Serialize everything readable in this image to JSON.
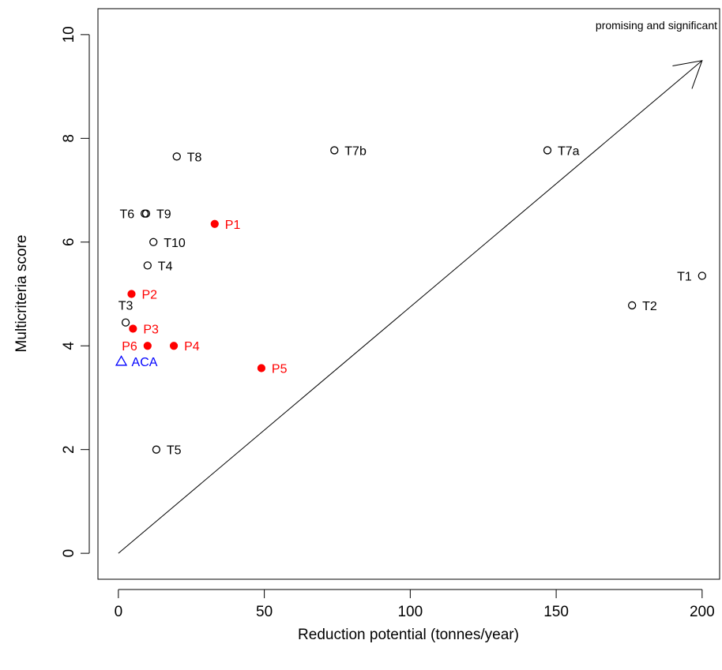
{
  "chart_data": {
    "type": "scatter",
    "xlabel": "Reduction potential (tonnes/year)",
    "ylabel": "Multicriteria score",
    "xlim": [
      -7,
      206
    ],
    "ylim": [
      -0.5,
      10.5
    ],
    "x_ticks": [
      0,
      50,
      100,
      150,
      200
    ],
    "y_ticks": [
      0,
      2,
      4,
      6,
      8,
      10
    ],
    "grid": false,
    "annotation": "promising and significant",
    "arrow": {
      "from": [
        0,
        0
      ],
      "to": [
        200,
        9.5
      ]
    },
    "series": [
      {
        "marker": "open-circle",
        "color": "#000000",
        "points": [
          {
            "label": "T1",
            "x": 200,
            "y": 5.35,
            "label_side": "left"
          },
          {
            "label": "T2",
            "x": 176,
            "y": 4.78,
            "label_side": "right"
          },
          {
            "label": "T3",
            "x": 2.5,
            "y": 4.45,
            "label_side": "above"
          },
          {
            "label": "T4",
            "x": 10,
            "y": 5.55,
            "label_side": "right"
          },
          {
            "label": "T5",
            "x": 13,
            "y": 2.0,
            "label_side": "right"
          },
          {
            "label": "T6",
            "x": 9,
            "y": 6.55,
            "label_side": "left"
          },
          {
            "label": "T7a",
            "x": 147,
            "y": 7.77,
            "label_side": "right"
          },
          {
            "label": "T7b",
            "x": 74,
            "y": 7.77,
            "label_side": "right"
          },
          {
            "label": "T8",
            "x": 20,
            "y": 7.65,
            "label_side": "right"
          },
          {
            "label": "T9",
            "x": 9.5,
            "y": 6.55,
            "label_side": "right"
          },
          {
            "label": "T10",
            "x": 12,
            "y": 6.0,
            "label_side": "right"
          }
        ]
      },
      {
        "marker": "filled-circle",
        "color": "#ff0000",
        "points": [
          {
            "label": "P1",
            "x": 33,
            "y": 6.35,
            "label_side": "right"
          },
          {
            "label": "P2",
            "x": 4.5,
            "y": 5.0,
            "label_side": "right"
          },
          {
            "label": "P3",
            "x": 5,
            "y": 4.33,
            "label_side": "right"
          },
          {
            "label": "P4",
            "x": 19,
            "y": 4.0,
            "label_side": "right"
          },
          {
            "label": "P5",
            "x": 49,
            "y": 3.57,
            "label_side": "right"
          },
          {
            "label": "P6",
            "x": 10,
            "y": 4.0,
            "label_side": "left"
          }
        ]
      },
      {
        "marker": "open-triangle",
        "color": "#0000ff",
        "points": [
          {
            "label": "ACA",
            "x": 1,
            "y": 3.7,
            "label_side": "right"
          }
        ]
      }
    ]
  }
}
